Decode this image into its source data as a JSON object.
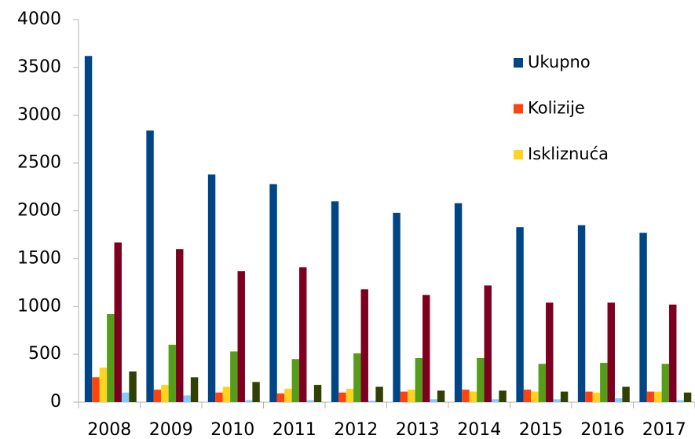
{
  "chart_data": {
    "type": "bar",
    "categories": [
      "2008",
      "2009",
      "2010",
      "2011",
      "2012",
      "2013",
      "2014",
      "2015",
      "2016",
      "2017"
    ],
    "series": [
      {
        "name": "Ukupno",
        "color": "#004586",
        "values": [
          3620,
          2840,
          2380,
          2280,
          2100,
          1980,
          2080,
          1830,
          1850,
          1770
        ]
      },
      {
        "name": "Kolizije",
        "color": "#ff420e",
        "values": [
          260,
          130,
          100,
          90,
          100,
          110,
          130,
          130,
          110,
          110
        ]
      },
      {
        "name": "Iskliznuća",
        "color": "#ffd320",
        "values": [
          360,
          180,
          160,
          140,
          140,
          130,
          110,
          110,
          100,
          110
        ]
      },
      {
        "color": "#579d1c",
        "values": [
          920,
          600,
          530,
          450,
          510,
          460,
          460,
          400,
          410,
          400
        ]
      },
      {
        "color": "#7e0021",
        "values": [
          1670,
          1600,
          1370,
          1410,
          1180,
          1120,
          1220,
          1040,
          1040,
          1020
        ]
      },
      {
        "color": "#83caff",
        "values": [
          100,
          70,
          20,
          20,
          15,
          30,
          30,
          30,
          40,
          20
        ]
      },
      {
        "color": "#314004",
        "values": [
          320,
          260,
          210,
          180,
          160,
          120,
          120,
          110,
          160,
          100
        ]
      }
    ],
    "ylim": [
      0,
      4000
    ],
    "yticks": [
      0,
      500,
      1000,
      1500,
      2000,
      2500,
      3000,
      3500,
      4000
    ],
    "legend": "upper right"
  }
}
